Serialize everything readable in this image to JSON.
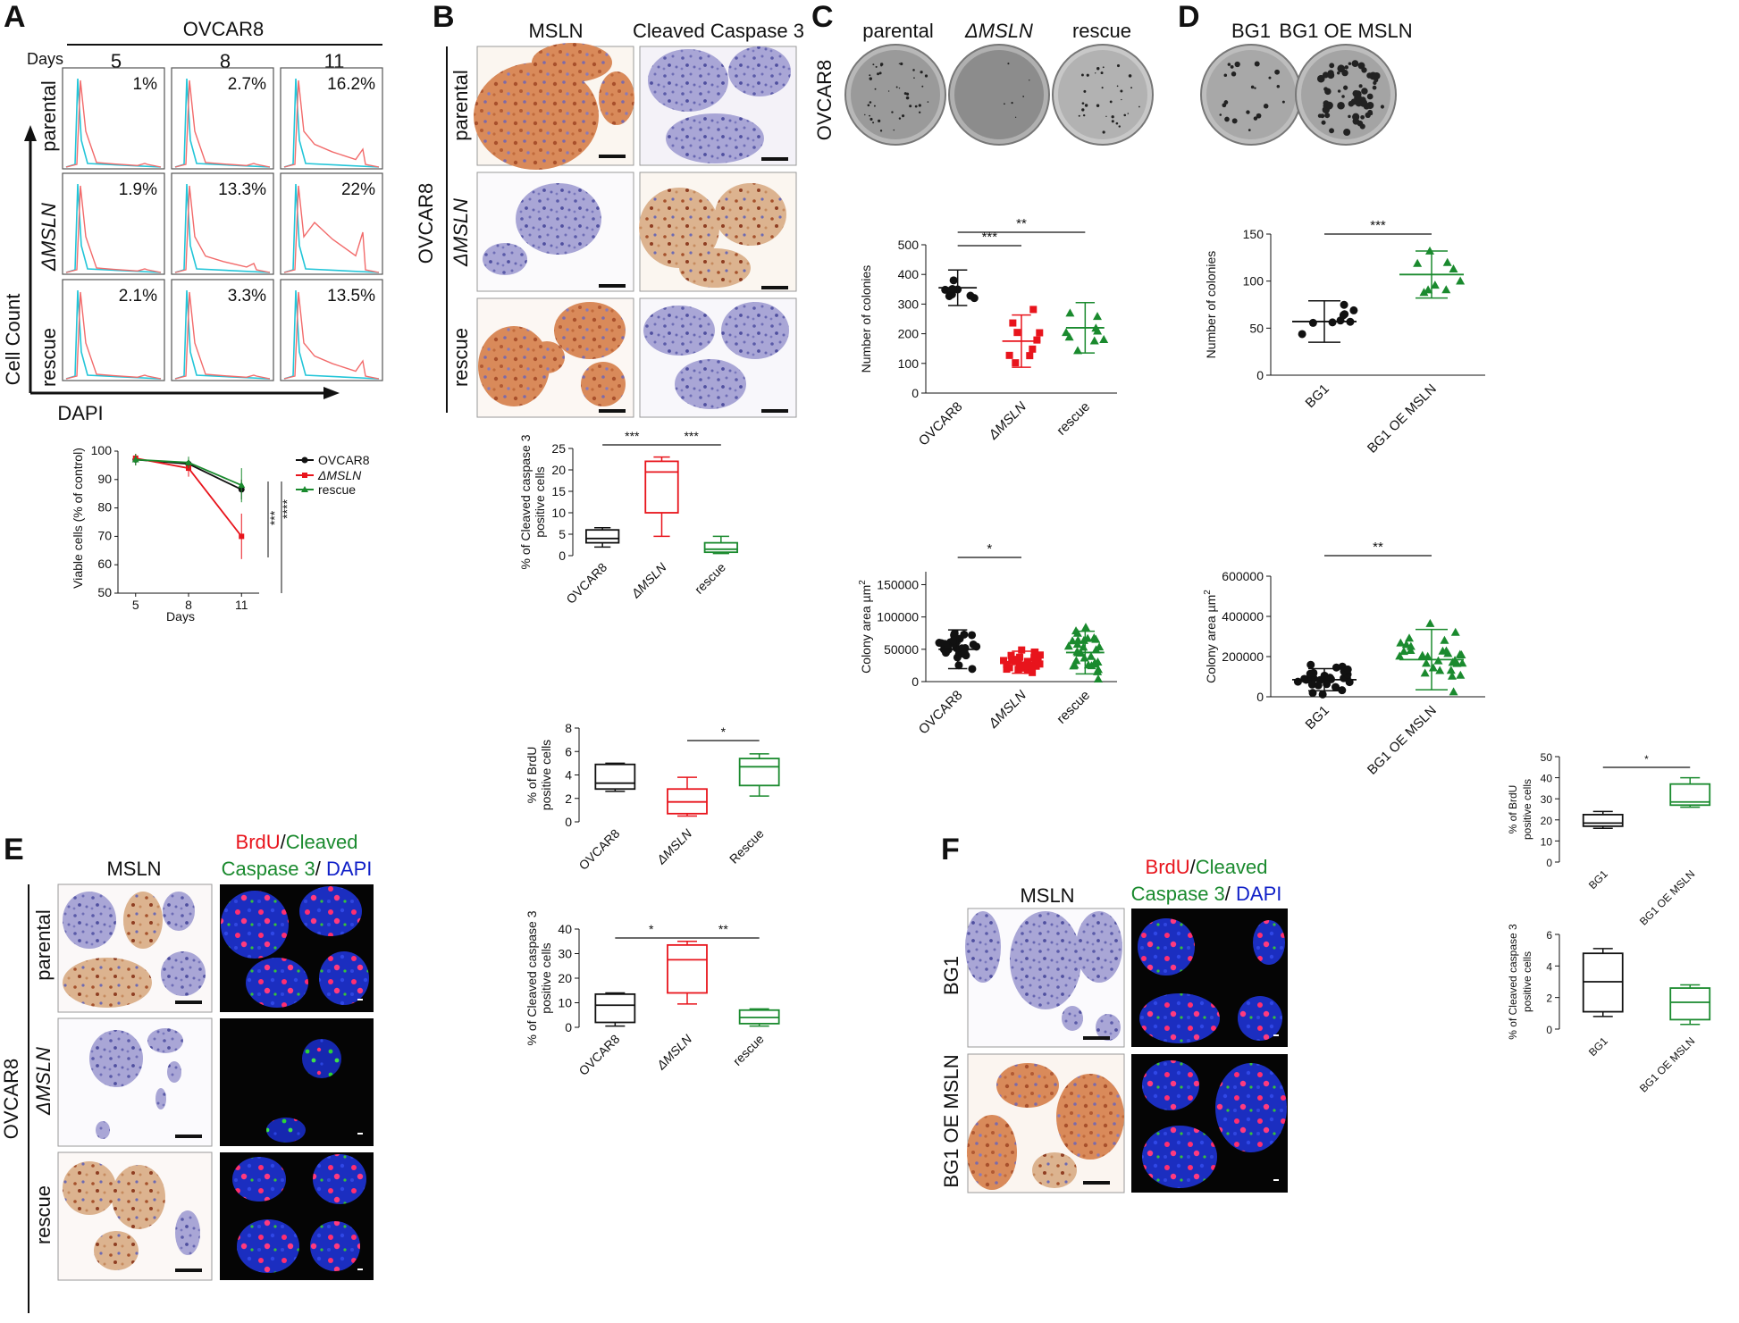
{
  "panels": {
    "A": "A",
    "B": "B",
    "C": "C",
    "D": "D",
    "E": "E",
    "F": "F"
  },
  "A": {
    "cell_line": "OVCAR8",
    "days_label": "Days",
    "days": [
      "5",
      "8",
      "11"
    ],
    "rows": [
      {
        "label": "parental",
        "pcts": [
          "1%",
          "2.7%",
          "16.2%"
        ]
      },
      {
        "label": "ΔMSLN",
        "pcts": [
          "1.9%",
          "13.3%",
          "22%"
        ]
      },
      {
        "label": "rescue",
        "pcts": [
          "2.1%",
          "3.3%",
          "13.5%"
        ]
      }
    ],
    "y_axis": "Cell Count",
    "x_axis": "DAPI",
    "line_chart": {
      "ylabel": "Viable cells (% of control)",
      "xlabel": "Days",
      "xticks": [
        "5",
        "8",
        "11"
      ],
      "yticks": [
        "50",
        "60",
        "70",
        "80",
        "90",
        "100"
      ],
      "stars1": "***",
      "stars2": "****",
      "legend": [
        "OVCAR8",
        "ΔMSLN",
        "rescue"
      ]
    }
  },
  "B": {
    "col1": "MSLN",
    "col2": "Cleaved Caspase 3",
    "side": "OVCAR8",
    "rows": [
      "parental",
      "ΔMSLN",
      "rescue"
    ],
    "box": {
      "ylabel1": "% of Cleaved caspase 3",
      "ylabel2": "positive cells",
      "categories": [
        "OVCAR8",
        "ΔMSLN",
        "rescue"
      ],
      "yticks": [
        "0",
        "5",
        "10",
        "15",
        "20",
        "25"
      ],
      "sig1": "***",
      "sig2": "***"
    }
  },
  "C": {
    "cols": [
      "parental",
      "ΔMSLN",
      "rescue"
    ],
    "side": "OVCAR8",
    "colonies": {
      "ylabel": "Number of colonies",
      "yticks": [
        "0",
        "100",
        "200",
        "300",
        "400",
        "500"
      ],
      "categories": [
        "OVCAR8",
        "ΔMSLN",
        "rescue"
      ],
      "sig1": "***",
      "sig2": "**"
    },
    "area": {
      "ylabel": "Colony area µm",
      "sup": "2",
      "yticks": [
        "0",
        "50000",
        "100000",
        "150000"
      ],
      "categories": [
        "OVCAR8",
        "ΔMSLN",
        "rescue"
      ],
      "sig": "*"
    }
  },
  "D": {
    "cols": [
      "BG1",
      "BG1 OE MSLN"
    ],
    "colonies": {
      "ylabel": "Number of colonies",
      "yticks": [
        "0",
        "50",
        "100",
        "150"
      ],
      "categories": [
        "BG1",
        "BG1 OE MSLN"
      ],
      "sig": "***"
    },
    "area": {
      "ylabel": "Colony area µm",
      "sup": "2",
      "yticks": [
        "0",
        "200000",
        "400000",
        "600000"
      ],
      "categories": [
        "BG1",
        "BG1 OE MSLN"
      ],
      "sig": "**"
    }
  },
  "E": {
    "col1": "MSLN",
    "col2_red": "BrdU",
    "col2_slash": "/",
    "col2_green1": "Cleaved",
    "col2_green2": "Caspase 3",
    "col2_sep": "/ ",
    "col2_blue": "DAPI",
    "side": "OVCAR8",
    "rows": [
      "parental",
      "ΔMSLN",
      "rescue"
    ],
    "brdu": {
      "ylabel1": "% of BrdU",
      "ylabel2": "positive cells",
      "yticks": [
        "0",
        "2",
        "4",
        "6",
        "8"
      ],
      "categories": [
        "OVCAR8",
        "ΔMSLN",
        "Rescue"
      ],
      "sig": "*"
    },
    "casp": {
      "ylabel1": "% of Cleaved caspase 3",
      "ylabel2": "positive cells",
      "yticks": [
        "0",
        "10",
        "20",
        "30",
        "40"
      ],
      "categories": [
        "OVCAR8",
        "ΔMSLN",
        "rescue"
      ],
      "sig1": "*",
      "sig2": "**"
    }
  },
  "F": {
    "col1": "MSLN",
    "rows": [
      "BG1",
      "BG1 OE MSLN"
    ],
    "brdu": {
      "ylabel1": "% of BrdU",
      "ylabel2": "positive cells",
      "yticks": [
        "0",
        "10",
        "20",
        "30",
        "40",
        "50"
      ],
      "categories": [
        "BG1",
        "BG1 OE MSLN"
      ],
      "sig": "*"
    },
    "casp": {
      "ylabel1": "% of Cleaved caspase 3",
      "ylabel2": "positive cells",
      "yticks": [
        "0",
        "2",
        "4",
        "6"
      ],
      "categories": [
        "BG1",
        "BG1 OE MSLN"
      ]
    }
  },
  "colors": {
    "black": "#111111",
    "red": "#e8141c",
    "green": "#1a8a2e",
    "cyan": "#22c5d8",
    "salmon": "#f26b6b",
    "brown": "#c97a4e",
    "ihc_blue": "#8e8fc9",
    "dapi_blue": "#1020c8",
    "brdu_red": "#ff2b6b"
  },
  "chart_data": [
    {
      "type": "line",
      "xlabel": "Days",
      "ylabel": "Viable cells (% of control)",
      "x": [
        5,
        8,
        11
      ],
      "ylim": [
        50,
        100
      ],
      "series": [
        {
          "name": "OVCAR8",
          "values": [
            97,
            95.5,
            86.5
          ]
        },
        {
          "name": "ΔMSLN",
          "values": [
            97.5,
            94,
            70
          ]
        },
        {
          "name": "rescue",
          "values": [
            97,
            96,
            88
          ]
        }
      ]
    },
    {
      "type": "box",
      "ylabel": "% of Cleaved caspase 3 positive cells",
      "categories": [
        "OVCAR8",
        "ΔMSLN",
        "rescue"
      ],
      "ylim": [
        0,
        25
      ],
      "boxes": [
        {
          "min": 2,
          "q1": 3,
          "med": 4,
          "q3": 6,
          "max": 6.5
        },
        {
          "min": 4.5,
          "q1": 10,
          "med": 19.5,
          "q3": 22,
          "max": 23
        },
        {
          "min": 0.5,
          "q1": 0.8,
          "med": 1.5,
          "q3": 3,
          "max": 4.5
        }
      ]
    },
    {
      "type": "scatter",
      "ylabel": "Number of colonies",
      "categories": [
        "OVCAR8",
        "ΔMSLN",
        "rescue"
      ],
      "ylim": [
        0,
        500
      ],
      "means": [
        355,
        175,
        220
      ],
      "sd": [
        60,
        88,
        85
      ]
    },
    {
      "type": "scatter",
      "ylabel": "Colony area µm2",
      "categories": [
        "OVCAR8",
        "ΔMSLN",
        "rescue"
      ],
      "ylim": [
        0,
        170000
      ],
      "means": [
        50000,
        30000,
        45000
      ],
      "sd": [
        30000,
        17000,
        33000
      ]
    },
    {
      "type": "scatter",
      "ylabel": "Number of colonies",
      "categories": [
        "BG1",
        "BG1 OE MSLN"
      ],
      "ylim": [
        0,
        150
      ],
      "means": [
        57,
        107
      ],
      "sd": [
        22,
        25
      ]
    },
    {
      "type": "scatter",
      "ylabel": "Colony area µm2",
      "categories": [
        "BG1",
        "BG1 OE MSLN"
      ],
      "ylim": [
        0,
        600000
      ],
      "means": [
        85000,
        185000
      ],
      "sd": [
        55000,
        150000
      ]
    },
    {
      "type": "box",
      "ylabel": "% of BrdU positive cells",
      "categories": [
        "OVCAR8",
        "ΔMSLN",
        "Rescue"
      ],
      "ylim": [
        0,
        8
      ],
      "boxes": [
        {
          "min": 2.6,
          "q1": 2.8,
          "med": 3.3,
          "q3": 4.9,
          "max": 5
        },
        {
          "min": 0.5,
          "q1": 0.7,
          "med": 1.7,
          "q3": 2.8,
          "max": 3.8
        },
        {
          "min": 2.2,
          "q1": 3.1,
          "med": 4.7,
          "q3": 5.4,
          "max": 5.8
        }
      ]
    },
    {
      "type": "box",
      "ylabel": "% of Cleaved caspase 3 positive cells",
      "categories": [
        "OVCAR8",
        "ΔMSLN",
        "rescue"
      ],
      "ylim": [
        0,
        40
      ],
      "boxes": [
        {
          "min": 0.5,
          "q1": 2,
          "med": 9,
          "q3": 13.5,
          "max": 14
        },
        {
          "min": 9.5,
          "q1": 14,
          "med": 27.5,
          "q3": 33.5,
          "max": 35
        },
        {
          "min": 0.5,
          "q1": 1.5,
          "med": 4,
          "q3": 7,
          "max": 7.5
        }
      ]
    },
    {
      "type": "box",
      "ylabel": "% of BrdU positive cells",
      "categories": [
        "BG1",
        "BG1 OE MSLN"
      ],
      "ylim": [
        0,
        50
      ],
      "boxes": [
        {
          "min": 16,
          "q1": 17,
          "med": 18.5,
          "q3": 22.5,
          "max": 24
        },
        {
          "min": 26,
          "q1": 27,
          "med": 28.5,
          "q3": 37,
          "max": 40
        }
      ]
    },
    {
      "type": "box",
      "ylabel": "% of Cleaved caspase 3 positive cells",
      "categories": [
        "BG1",
        "BG1 OE MSLN"
      ],
      "ylim": [
        0,
        6
      ],
      "boxes": [
        {
          "min": 0.8,
          "q1": 1.1,
          "med": 3,
          "q3": 4.8,
          "max": 5.1
        },
        {
          "min": 0.3,
          "q1": 0.6,
          "med": 1.7,
          "q3": 2.6,
          "max": 2.8
        }
      ]
    }
  ]
}
